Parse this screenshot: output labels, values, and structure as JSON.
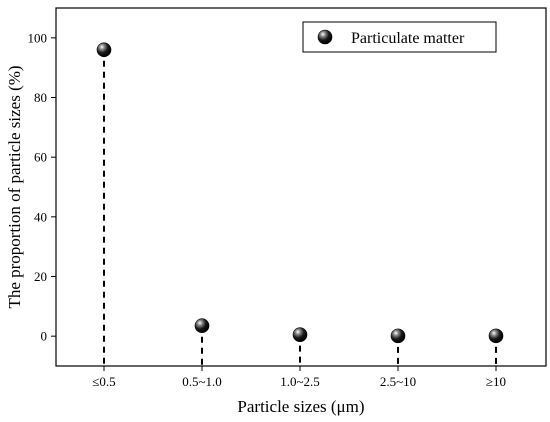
{
  "chart_data": {
    "type": "scatter",
    "title": "",
    "xlabel": "Particle sizes (μm)",
    "ylabel": "The proportion of particle sizes (%)",
    "categories": [
      "≤0.5",
      "0.5~1.0",
      "1.0~2.5",
      "2.5~10",
      "≥10"
    ],
    "series": [
      {
        "name": "Particulate matter",
        "values": [
          96,
          3.5,
          0.5,
          0.1,
          0.1
        ]
      }
    ],
    "ylim": [
      -10,
      110
    ],
    "yticks": [
      0,
      20,
      40,
      60,
      80,
      100
    ],
    "grid": false,
    "legend": "top-right",
    "drop_lines": true,
    "marker_color": "#111111"
  }
}
